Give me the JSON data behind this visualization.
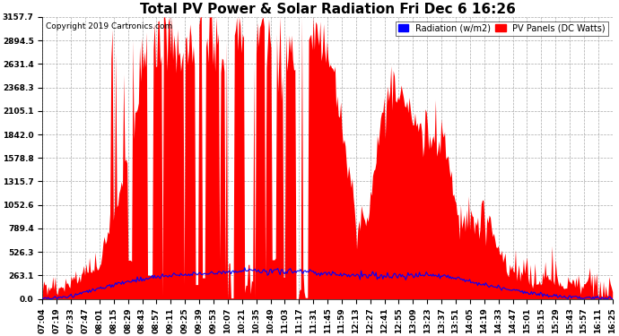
{
  "title": "Total PV Power & Solar Radiation Fri Dec 6 16:26",
  "copyright": "Copyright 2019 Cartronics.com",
  "legend_radiation": "Radiation (w/m2)",
  "legend_pv": "PV Panels (DC Watts)",
  "yticks": [
    0.0,
    263.1,
    526.3,
    789.4,
    1052.6,
    1315.7,
    1578.8,
    1842.0,
    2105.1,
    2368.3,
    2631.4,
    2894.5,
    3157.7
  ],
  "ymax": 3157.7,
  "bg_color": "#ffffff",
  "grid_color": "#aaaaaa",
  "radiation_color": "#0000ff",
  "pv_color": "#ff0000",
  "title_fontsize": 11,
  "copyright_fontsize": 6.5,
  "legend_fontsize": 7,
  "tick_fontsize": 6.5,
  "xtick_labels": [
    "07:04",
    "07:19",
    "07:33",
    "07:47",
    "08:01",
    "08:15",
    "08:29",
    "08:43",
    "08:57",
    "09:11",
    "09:25",
    "09:39",
    "09:53",
    "10:07",
    "10:21",
    "10:35",
    "10:49",
    "11:03",
    "11:17",
    "11:31",
    "11:45",
    "11:59",
    "12:13",
    "12:27",
    "12:41",
    "12:55",
    "13:09",
    "13:23",
    "13:37",
    "13:51",
    "14:05",
    "14:19",
    "14:33",
    "14:47",
    "15:01",
    "15:15",
    "15:29",
    "15:43",
    "15:57",
    "16:11",
    "16:25"
  ]
}
